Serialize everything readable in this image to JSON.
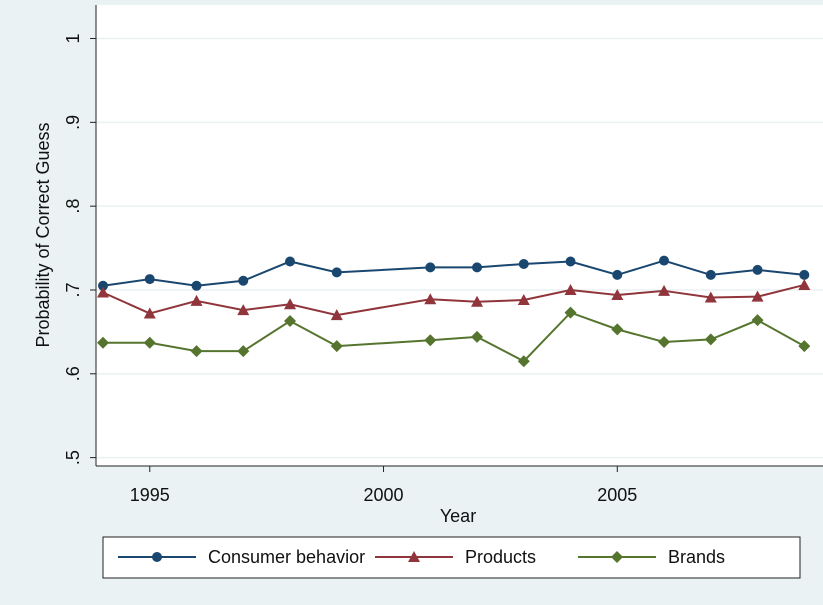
{
  "chart_data": {
    "type": "line",
    "x_label": "Year",
    "y_label": "Probability of Correct Guess",
    "x": [
      1994,
      1995,
      1996,
      1997,
      1998,
      1999,
      2001,
      2002,
      2003,
      2004,
      2005,
      2006,
      2007,
      2008,
      2009
    ],
    "series": [
      {
        "name": "Consumer behavior",
        "color": "#1a476f",
        "marker": "circle",
        "values": [
          0.705,
          0.713,
          0.705,
          0.711,
          0.734,
          0.721,
          0.727,
          0.727,
          0.731,
          0.734,
          0.718,
          0.735,
          0.718,
          0.724,
          0.718
        ]
      },
      {
        "name": "Products",
        "color": "#90353b",
        "marker": "triangle",
        "values": [
          0.697,
          0.672,
          0.687,
          0.676,
          0.683,
          0.67,
          0.689,
          0.686,
          0.688,
          0.7,
          0.694,
          0.699,
          0.691,
          0.692,
          0.706
        ]
      },
      {
        "name": "Brands",
        "color": "#55752f",
        "marker": "diamond",
        "values": [
          0.637,
          0.637,
          0.627,
          0.627,
          0.663,
          0.633,
          0.64,
          0.644,
          0.615,
          0.673,
          0.653,
          0.638,
          0.641,
          0.664,
          0.633
        ]
      }
    ],
    "xlim": [
      1993.85,
      2009.4
    ],
    "ylim": [
      0.49,
      1.04
    ],
    "xticks": [
      1995,
      2000,
      2005
    ],
    "yticks": [
      {
        "value": 0.5,
        "label": ".5"
      },
      {
        "value": 0.6,
        "label": ".6"
      },
      {
        "value": 0.7,
        "label": ".7"
      },
      {
        "value": 0.8,
        "label": ".8"
      },
      {
        "value": 0.9,
        "label": ".9"
      },
      {
        "value": 1,
        "label": "1"
      }
    ],
    "grid": true,
    "legend": "bottom"
  }
}
